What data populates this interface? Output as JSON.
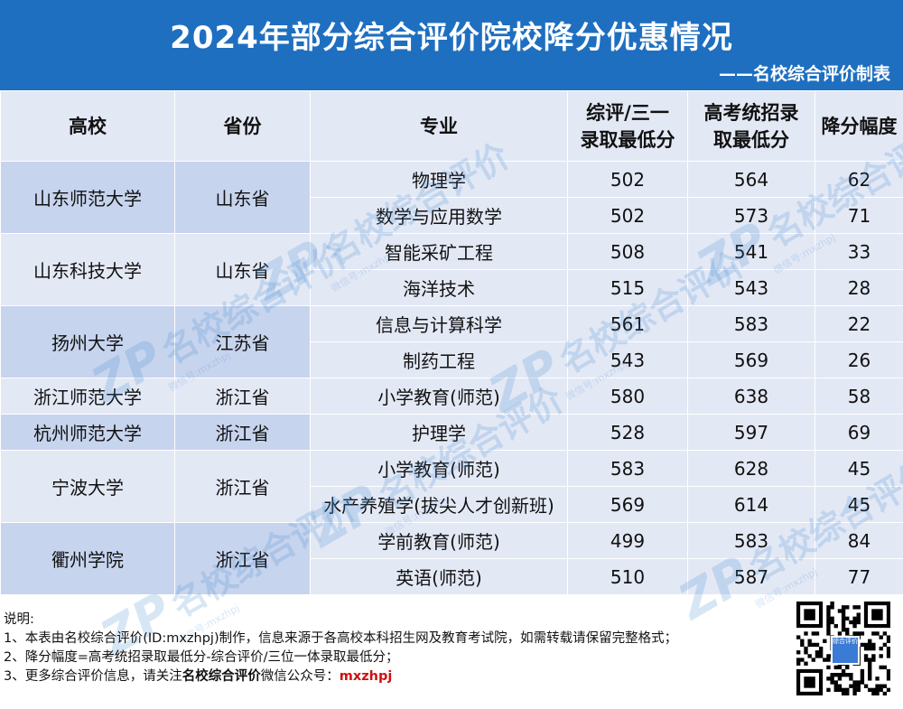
{
  "header": {
    "title": "2024年部分综合评价院校降分优惠情况",
    "subtitle": "——名校综合评价制表"
  },
  "table": {
    "columns": [
      "高校",
      "省份",
      "专业",
      "综评/三一\n录取最低分",
      "高考统招录\n取最低分",
      "降分幅度"
    ],
    "groups": [
      {
        "school": "山东师范大学",
        "province": "山东省",
        "rows": [
          {
            "major": "物理学",
            "zongping": "502",
            "tongzhao": "564",
            "drop": "62"
          },
          {
            "major": "数学与应用数学",
            "zongping": "502",
            "tongzhao": "573",
            "drop": "71"
          }
        ]
      },
      {
        "school": "山东科技大学",
        "province": "山东省",
        "rows": [
          {
            "major": "智能采矿工程",
            "zongping": "508",
            "tongzhao": "541",
            "drop": "33"
          },
          {
            "major": "海洋技术",
            "zongping": "515",
            "tongzhao": "543",
            "drop": "28"
          }
        ]
      },
      {
        "school": "扬州大学",
        "province": "江苏省",
        "rows": [
          {
            "major": "信息与计算科学",
            "zongping": "561",
            "tongzhao": "583",
            "drop": "22"
          },
          {
            "major": "制药工程",
            "zongping": "543",
            "tongzhao": "569",
            "drop": "26"
          }
        ]
      },
      {
        "school": "浙江师范大学",
        "province": "浙江省",
        "rows": [
          {
            "major": "小学教育(师范)",
            "zongping": "580",
            "tongzhao": "638",
            "drop": "58"
          }
        ]
      },
      {
        "school": "杭州师范大学",
        "province": "浙江省",
        "rows": [
          {
            "major": "护理学",
            "zongping": "528",
            "tongzhao": "597",
            "drop": "69"
          }
        ]
      },
      {
        "school": "宁波大学",
        "province": "浙江省",
        "rows": [
          {
            "major": "小学教育(师范)",
            "zongping": "583",
            "tongzhao": "628",
            "drop": "45"
          },
          {
            "major": "水产养殖学(拔尖人才创新班)",
            "zongping": "569",
            "tongzhao": "614",
            "drop": "45"
          }
        ]
      },
      {
        "school": "衢州学院",
        "province": "浙江省",
        "rows": [
          {
            "major": "学前教育(师范)",
            "zongping": "499",
            "tongzhao": "583",
            "drop": "84"
          },
          {
            "major": "英语(师范)",
            "zongping": "510",
            "tongzhao": "587",
            "drop": "77"
          }
        ]
      }
    ]
  },
  "watermark": {
    "mark": "ZP",
    "text": "名校综合评价",
    "sub": "微信号:mxzhpj"
  },
  "notes": {
    "heading": "说明:",
    "line1": "1、本表由名校综合评价(ID:mxzhpj)制作，信息来源于各高校本科招生网及教育考试院，如需转载请保留完整格式；",
    "line2": "2、降分幅度=高考统招录取最低分-综合评价/三位一体录取最低分；",
    "line3_prefix": "3、更多综合评价信息，请关注",
    "line3_bold": "名校综合评价",
    "line3_mid": "微信公众号：",
    "line3_id": "mxzhpj"
  },
  "qr": {
    "logo_text": "综合评价",
    "icon": "qr-code-icon"
  },
  "colors": {
    "banner": "#1f6fc0",
    "row_blue": "#c7d4ee",
    "row_light": "#e3e8f5",
    "accent_red": "#d01010"
  }
}
